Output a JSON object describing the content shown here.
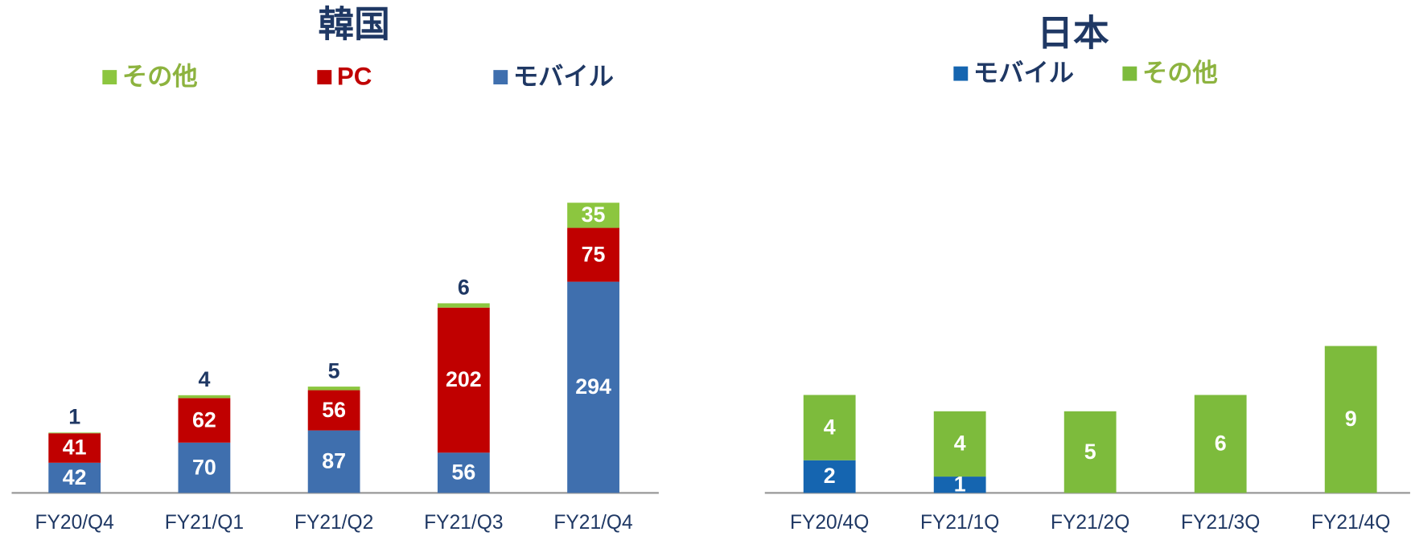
{
  "chart_data": [
    {
      "type": "stacked_bar",
      "title": "韓国",
      "categories": [
        "FY20/Q4",
        "FY21/Q1",
        "FY21/Q2",
        "FY21/Q3",
        "FY21/Q4"
      ],
      "series": [
        {
          "name": "モバイル",
          "color": "#3f6fae",
          "legend_color": "#1f3864",
          "values": [
            42,
            70,
            87,
            56,
            294
          ]
        },
        {
          "name": "PC",
          "color": "#c00000",
          "legend_color": "#c00000",
          "values": [
            41,
            62,
            56,
            202,
            75
          ]
        },
        {
          "name": "その他",
          "color": "#8cc63f",
          "legend_color": "#8db33f",
          "values": [
            1,
            4,
            5,
            6,
            35
          ]
        }
      ],
      "ylim": [
        0,
        500
      ]
    },
    {
      "type": "stacked_bar",
      "title": "日本",
      "categories": [
        "FY20/4Q",
        "FY21/1Q",
        "FY21/2Q",
        "FY21/3Q",
        "FY21/4Q"
      ],
      "series": [
        {
          "name": "モバイル",
          "color": "#1565b0",
          "legend_color": "#1f3864",
          "values": [
            2,
            1,
            null,
            null,
            null
          ]
        },
        {
          "name": "その他",
          "color": "#7dbb3c",
          "legend_color": "#8db33f",
          "values": [
            4,
            4,
            5,
            6,
            9
          ]
        }
      ],
      "ylim": [
        0,
        22
      ]
    }
  ]
}
